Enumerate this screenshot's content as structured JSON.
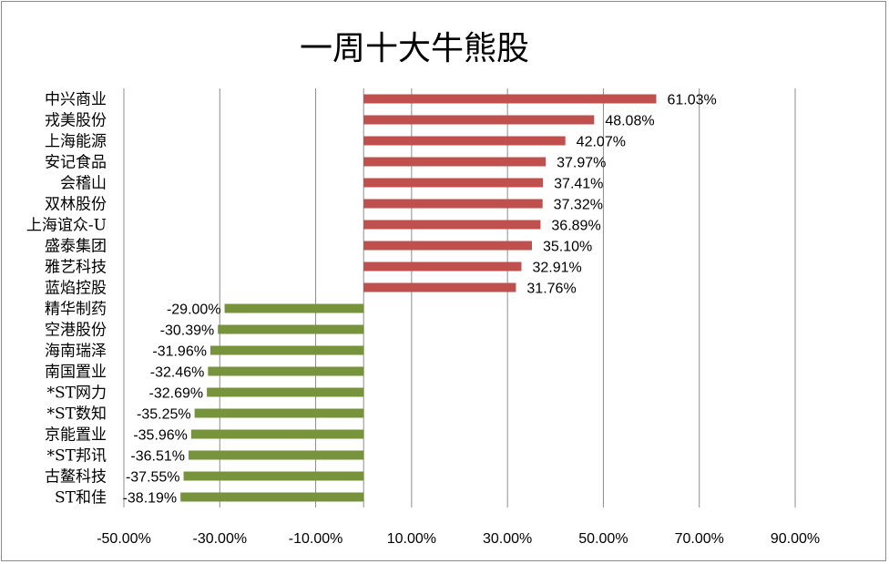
{
  "chart_data": {
    "type": "bar",
    "orientation": "horizontal",
    "title": "一周十大牛熊股",
    "xlabel": "",
    "ylabel": "",
    "xlim": [
      -50,
      90
    ],
    "x_ticks": [
      -50,
      -30,
      -10,
      10,
      30,
      50,
      70,
      90
    ],
    "x_tick_labels": [
      "-50.00%",
      "-30.00%",
      "-10.00%",
      "10.00%",
      "30.00%",
      "50.00%",
      "70.00%",
      "90.00%"
    ],
    "grid": "vertical",
    "legend": "none",
    "colors": {
      "positive": "#c0504d",
      "negative": "#77933c"
    },
    "categories": [
      "中兴商业",
      "戎美股份",
      "上海能源",
      "安记食品",
      "会稽山",
      "双林股份",
      "上海谊众-U",
      "盛泰集团",
      "雅艺科技",
      "蓝焰控股",
      "精华制药",
      "空港股份",
      "海南瑞泽",
      "南国置业",
      "*ST网力",
      "*ST数知",
      "京能置业",
      "*ST邦讯",
      "古鳌科技",
      "ST和佳"
    ],
    "values": [
      61.03,
      48.08,
      42.07,
      37.97,
      37.41,
      37.32,
      36.89,
      35.1,
      32.91,
      31.76,
      -29.0,
      -30.39,
      -31.96,
      -32.46,
      -32.69,
      -35.25,
      -35.96,
      -36.51,
      -37.55,
      -38.19
    ],
    "value_labels": [
      "61.03%",
      "48.08%",
      "42.07%",
      "37.97%",
      "37.41%",
      "37.32%",
      "36.89%",
      "35.10%",
      "32.91%",
      "31.76%",
      "-29.00%",
      "-30.39%",
      "-31.96%",
      "-32.46%",
      "-32.69%",
      "-35.25%",
      "-35.96%",
      "-36.51%",
      "-37.55%",
      "-38.19%"
    ]
  }
}
